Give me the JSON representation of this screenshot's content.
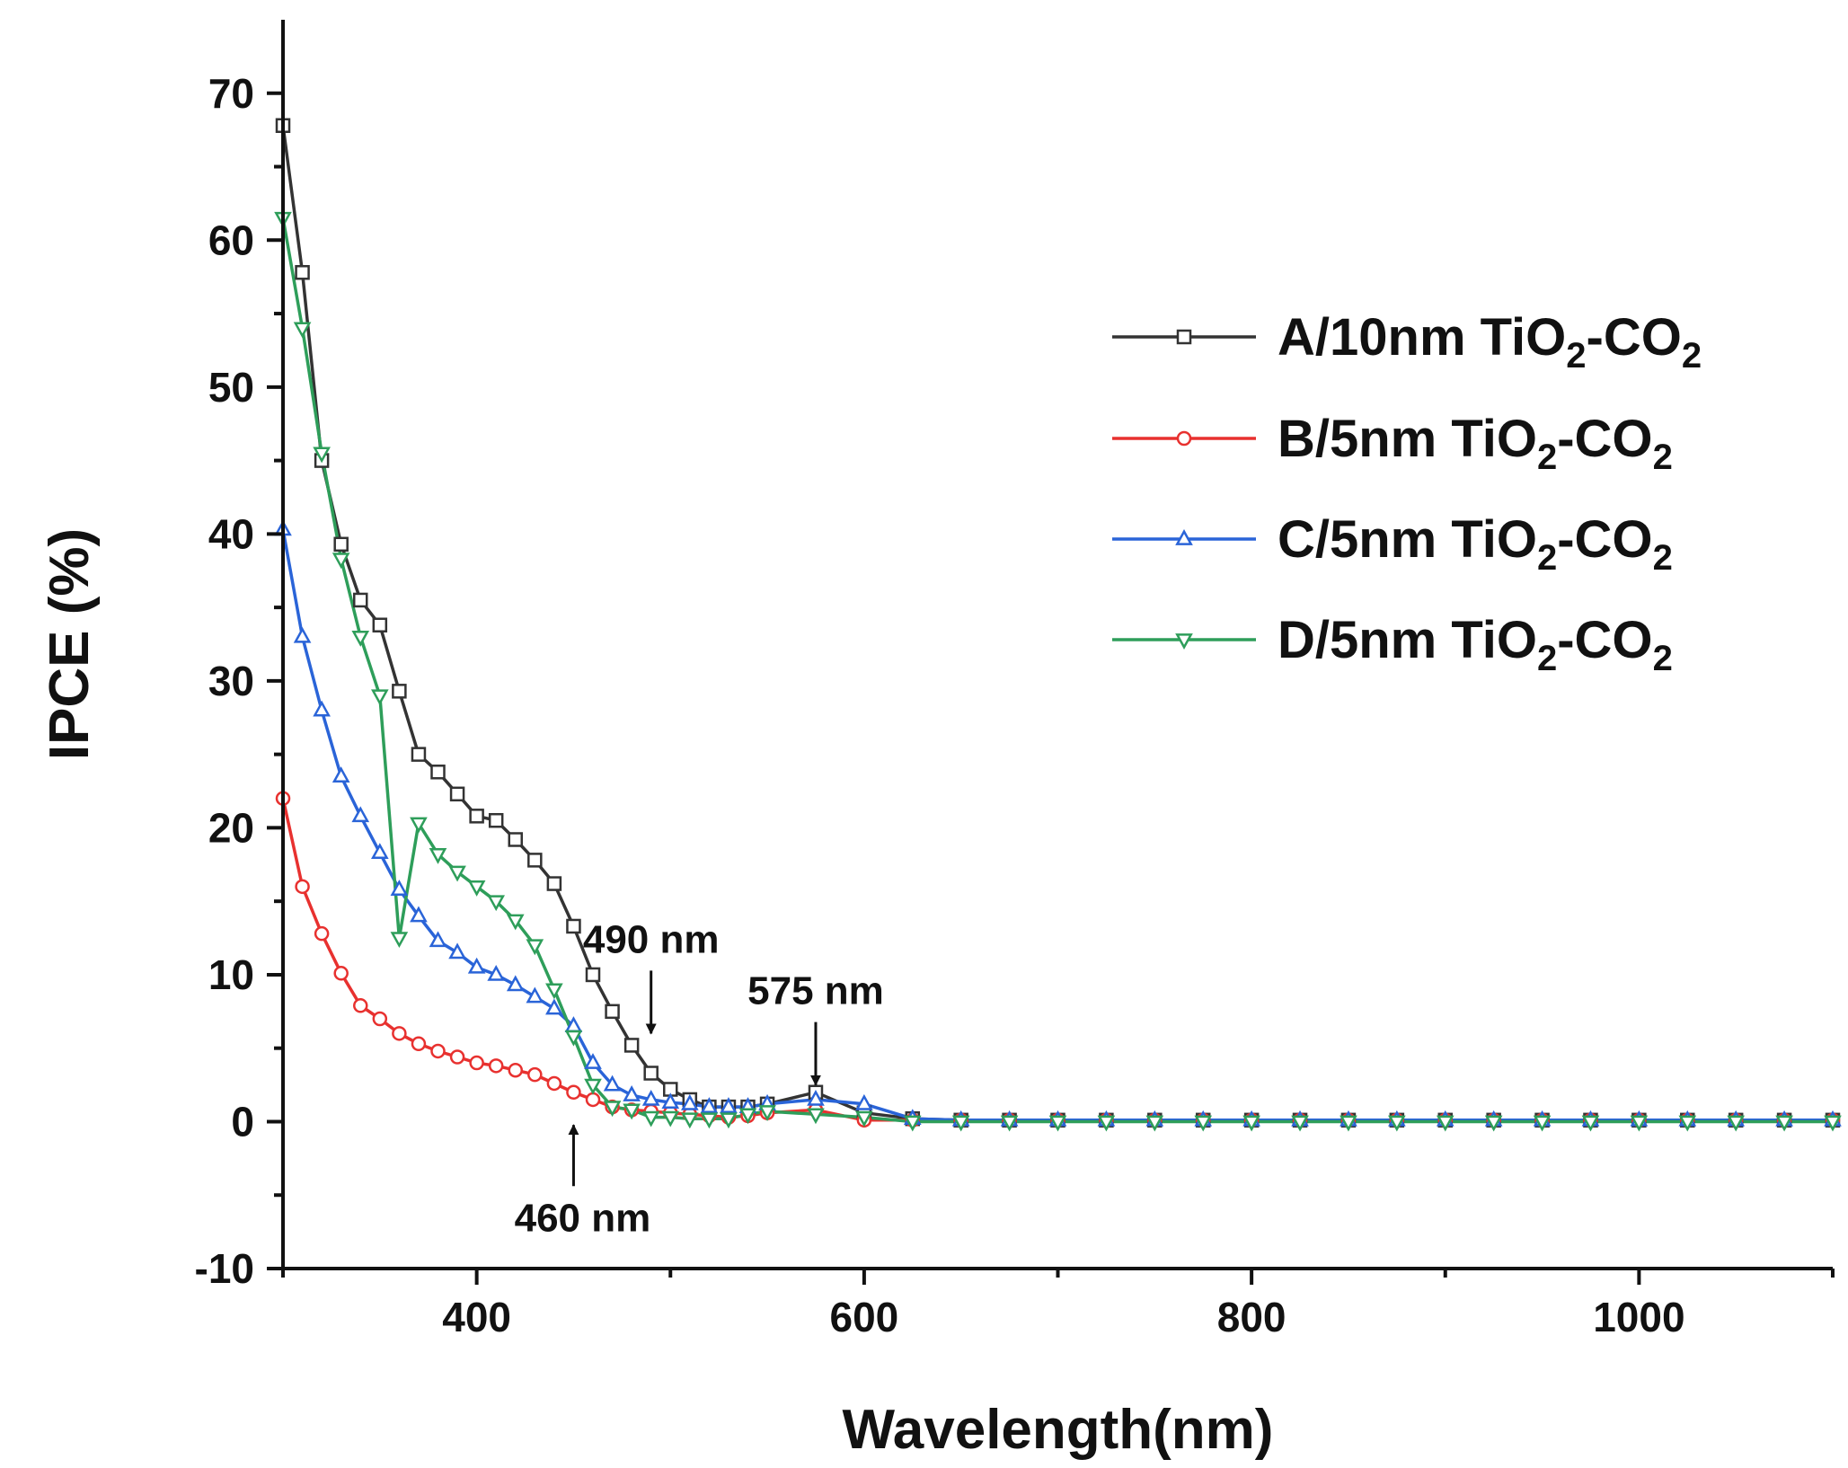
{
  "chart_data": {
    "type": "line",
    "xlabel": "Wavelength(nm)",
    "ylabel": "IPCE (%)",
    "xlim": [
      300,
      1100
    ],
    "ylim": [
      -10,
      75
    ],
    "xticks": [
      400,
      600,
      800,
      1000
    ],
    "yticks": [
      -10,
      0,
      10,
      20,
      30,
      40,
      50,
      60,
      70
    ],
    "grid": false,
    "legend_position": "top-right",
    "series": [
      {
        "name": "A/10nm TiO2-CO2",
        "legend_parts": {
          "prefix": "A/10nm TiO",
          "sub1": "2",
          "mid": "-CO",
          "sub2": "2"
        },
        "color": "#333333",
        "marker": "square",
        "x": [
          300,
          310,
          320,
          330,
          340,
          350,
          360,
          370,
          380,
          390,
          400,
          410,
          420,
          430,
          440,
          450,
          460,
          470,
          480,
          490,
          500,
          510,
          520,
          530,
          540,
          550,
          575,
          600,
          625,
          650,
          675,
          700,
          725,
          750,
          775,
          800,
          825,
          850,
          875,
          900,
          925,
          950,
          975,
          1000,
          1025,
          1050,
          1075,
          1100
        ],
        "y": [
          67.8,
          57.8,
          45.0,
          39.3,
          35.5,
          33.8,
          29.3,
          25.0,
          23.8,
          22.3,
          20.8,
          20.5,
          19.2,
          17.8,
          16.2,
          13.3,
          10.0,
          7.5,
          5.2,
          3.3,
          2.2,
          1.5,
          1.0,
          1.0,
          1.0,
          1.2,
          2.0,
          0.6,
          0.2,
          0.1,
          0.1,
          0.1,
          0.1,
          0.1,
          0.1,
          0.1,
          0.1,
          0.1,
          0.1,
          0.1,
          0.1,
          0.1,
          0.1,
          0.1,
          0.1,
          0.1,
          0.1,
          0.1
        ]
      },
      {
        "name": "B/5nm TiO2-CO2",
        "legend_parts": {
          "prefix": "B/5nm TiO",
          "sub1": "2",
          "mid": "-CO",
          "sub2": "2"
        },
        "color": "#e8312f",
        "marker": "circle",
        "x": [
          300,
          310,
          320,
          330,
          340,
          350,
          360,
          370,
          380,
          390,
          400,
          410,
          420,
          430,
          440,
          450,
          460,
          470,
          480,
          490,
          500,
          510,
          520,
          530,
          540,
          550,
          575,
          600,
          625,
          650,
          675,
          700,
          725,
          750,
          775,
          800,
          825,
          850,
          875,
          900,
          925,
          950,
          975,
          1000,
          1025,
          1050,
          1075,
          1100
        ],
        "y": [
          22.0,
          16.0,
          12.8,
          10.1,
          7.9,
          7.0,
          6.0,
          5.3,
          4.8,
          4.4,
          4.0,
          3.8,
          3.5,
          3.2,
          2.6,
          2.0,
          1.5,
          1.0,
          0.8,
          0.7,
          0.6,
          0.5,
          0.4,
          0.3,
          0.4,
          0.6,
          0.8,
          0.1,
          0.1,
          0.1,
          0.1,
          0.1,
          0.1,
          0.1,
          0.1,
          0.1,
          0.1,
          0.1,
          0.1,
          0.1,
          0.1,
          0.1,
          0.1,
          0.1,
          0.1,
          0.1,
          0.1,
          0.1
        ]
      },
      {
        "name": "C/5nm TiO2-CO2",
        "legend_parts": {
          "prefix": "C/5nm TiO",
          "sub1": "2",
          "mid": "-CO",
          "sub2": "2"
        },
        "color": "#2a64d8",
        "marker": "triangle-up",
        "x": [
          300,
          310,
          320,
          330,
          340,
          350,
          360,
          370,
          380,
          390,
          400,
          410,
          420,
          430,
          440,
          450,
          460,
          470,
          480,
          490,
          500,
          510,
          520,
          530,
          540,
          550,
          575,
          600,
          625,
          650,
          675,
          700,
          725,
          750,
          775,
          800,
          825,
          850,
          875,
          900,
          925,
          950,
          975,
          1000,
          1025,
          1050,
          1075,
          1100
        ],
        "y": [
          40.3,
          33.0,
          28.0,
          23.5,
          20.8,
          18.3,
          15.8,
          14.0,
          12.3,
          11.5,
          10.5,
          10.0,
          9.3,
          8.5,
          7.7,
          6.5,
          4.0,
          2.5,
          1.8,
          1.5,
          1.3,
          1.2,
          1.0,
          1.0,
          1.0,
          1.2,
          1.5,
          1.2,
          0.2,
          0.1,
          0.1,
          0.1,
          0.1,
          0.1,
          0.1,
          0.1,
          0.1,
          0.1,
          0.1,
          0.1,
          0.1,
          0.1,
          0.1,
          0.1,
          0.1,
          0.1,
          0.1,
          0.1
        ]
      },
      {
        "name": "D/5nm TiO2-CO2",
        "legend_parts": {
          "prefix": "D/5nm TiO",
          "sub1": "2",
          "mid": "-CO",
          "sub2": "2"
        },
        "color": "#2e9e5a",
        "marker": "triangle-down",
        "x": [
          300,
          310,
          320,
          330,
          340,
          350,
          360,
          370,
          380,
          390,
          400,
          410,
          420,
          430,
          440,
          450,
          460,
          470,
          480,
          490,
          500,
          510,
          520,
          530,
          540,
          550,
          575,
          600,
          625,
          650,
          675,
          700,
          725,
          750,
          775,
          800,
          825,
          850,
          875,
          900,
          925,
          950,
          975,
          1000,
          1025,
          1050,
          1075,
          1100
        ],
        "y": [
          61.5,
          54.0,
          45.5,
          38.3,
          33.0,
          29.0,
          12.5,
          20.3,
          18.2,
          17.0,
          16.0,
          15.0,
          13.7,
          12.0,
          9.0,
          5.8,
          2.5,
          1.0,
          0.8,
          0.3,
          0.3,
          0.2,
          0.2,
          0.2,
          0.5,
          0.7,
          0.5,
          0.3,
          0.0,
          0.0,
          0.0,
          0.0,
          0.0,
          0.0,
          0.0,
          0.0,
          0.0,
          0.0,
          0.0,
          0.0,
          0.0,
          0.0,
          0.0,
          0.0,
          0.0,
          0.0,
          0.0,
          0.0
        ]
      }
    ],
    "annotations": [
      {
        "text": "490 nm",
        "x": 490,
        "y": 6.0,
        "dir": "down"
      },
      {
        "text": "575 nm",
        "x": 575,
        "y": 2.5,
        "dir": "down"
      },
      {
        "text": "460 nm",
        "x": 450,
        "y": 0.5,
        "dir": "up"
      }
    ]
  }
}
